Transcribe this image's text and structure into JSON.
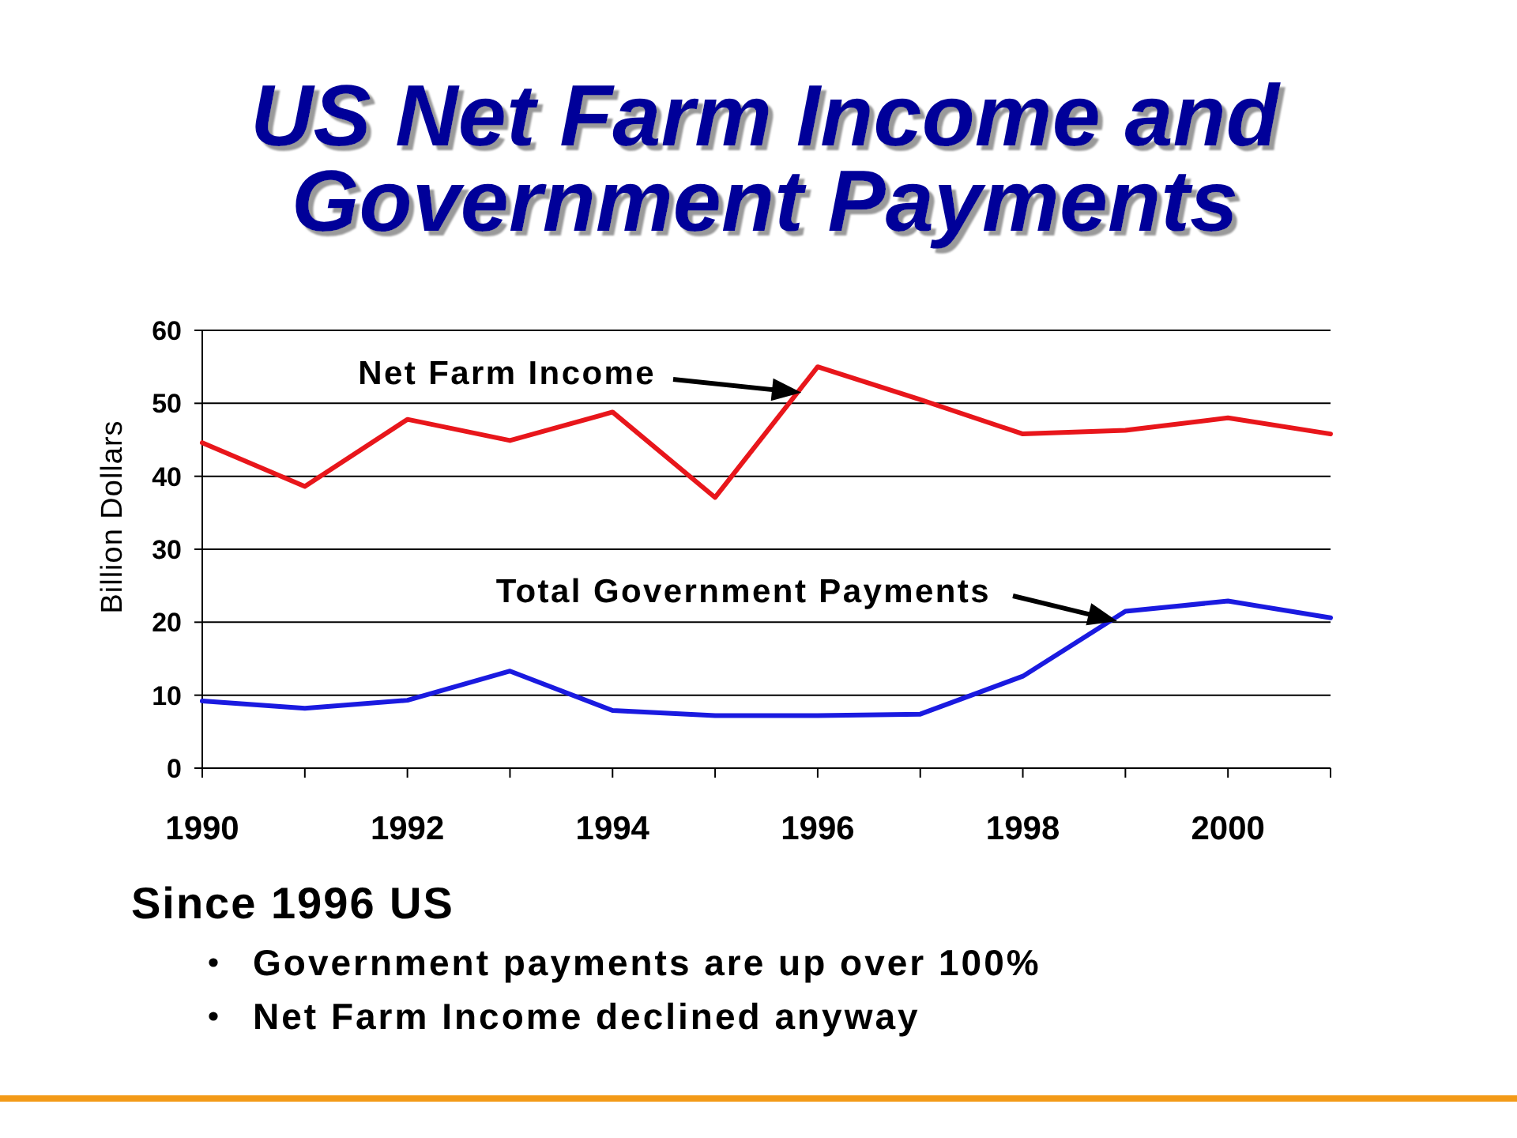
{
  "chart_data": {
    "type": "line",
    "title": "US Net Farm Income and Government Payments",
    "ylabel": "Billion Dollars",
    "x": [
      1990,
      1991,
      1992,
      1993,
      1994,
      1995,
      1996,
      1997,
      1998,
      1999,
      2000,
      2001
    ],
    "series": [
      {
        "color": "#e8161b",
        "values": [
          44.6,
          38.6,
          47.8,
          44.9,
          48.8,
          37.1,
          55.0,
          50.5,
          45.8,
          46.3,
          48.0,
          45.8
        ]
      },
      {
        "color": "#1a1ae0",
        "values": [
          9.2,
          8.2,
          9.3,
          13.3,
          7.9,
          7.2,
          7.2,
          7.4,
          12.6,
          21.5,
          22.9,
          20.6
        ]
      }
    ],
    "xlim": [
      1990,
      2001
    ],
    "xticks": [
      1990,
      {
        "value": 1991,
        "label": null
      },
      1992,
      {
        "value": 1993,
        "label": null
      },
      1994,
      {
        "value": 1995,
        "label": null
      },
      1996,
      {
        "value": 1997,
        "label": null
      },
      1998,
      {
        "value": 1999,
        "label": null
      },
      2000,
      {
        "value": 2001,
        "label": null
      }
    ],
    "ylim": [
      0,
      60
    ],
    "yticks": [
      0,
      10,
      20,
      30,
      40,
      50,
      60
    ],
    "grid": "y",
    "annotations": [
      "Net Farm Income",
      "Total Government Payments",
      "Since 1996 US",
      "Government payments are up over 100%",
      "Net Farm Income declined anyway"
    ]
  }
}
